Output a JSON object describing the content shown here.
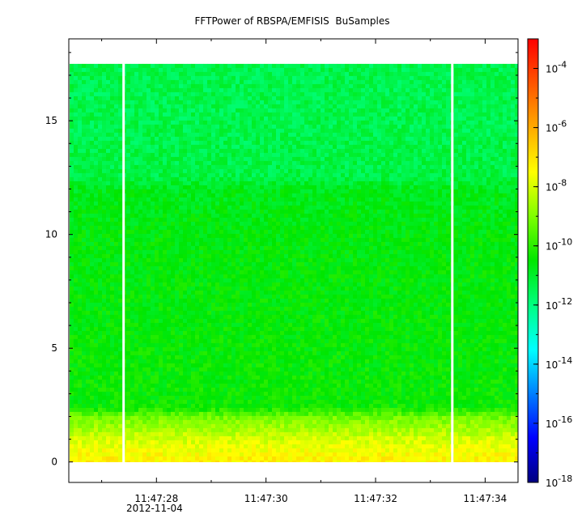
{
  "chart_data": {
    "type": "heatmap",
    "title": "FFTPower of RBSPA/EMFISIS  BuSamples",
    "xlabel": "",
    "ylabel": "",
    "x": {
      "unit": "time",
      "range": [
        "11:47:26.4",
        "11:47:34.6"
      ],
      "ticks": [
        {
          "value": "11:47:28",
          "label": "11:47:28"
        },
        {
          "value": "11:47:30",
          "label": "11:47:30"
        },
        {
          "value": "11:47:32",
          "label": "11:47:32"
        },
        {
          "value": "11:47:34",
          "label": "11:47:34"
        }
      ],
      "date_label": "2012-11-04",
      "data_gaps": [
        "11:47:27.4",
        "11:47:33.4"
      ]
    },
    "y": {
      "range": [
        -0.9,
        18.6
      ],
      "data_range": [
        0,
        17.5
      ],
      "ticks": [
        0,
        5,
        10,
        15
      ]
    },
    "z": {
      "scale": "log",
      "range": [
        1e-18,
        0.001
      ],
      "tick_exponents": [
        -18,
        -16,
        -14,
        -12,
        -10,
        -8,
        -6,
        -4
      ],
      "colormap": [
        "#00007f",
        "#0000ff",
        "#007fff",
        "#00ffff",
        "#00ff80",
        "#00e600",
        "#7fff00",
        "#ffff00",
        "#ffaa00",
        "#ff5500",
        "#ff0000"
      ]
    },
    "spectrum_profile": [
      {
        "y": 0.1,
        "log_power": -7.3
      },
      {
        "y": 0.5,
        "log_power": -7.6
      },
      {
        "y": 1.0,
        "log_power": -8.0
      },
      {
        "y": 1.5,
        "log_power": -8.6
      },
      {
        "y": 2.0,
        "log_power": -9.2
      },
      {
        "y": 2.4,
        "log_power": -10.4
      },
      {
        "y": 5.0,
        "log_power": -10.5
      },
      {
        "y": 10.0,
        "log_power": -10.6
      },
      {
        "y": 12.0,
        "log_power": -10.8
      },
      {
        "y": 12.5,
        "log_power": -11.3
      },
      {
        "y": 15.0,
        "log_power": -11.4
      },
      {
        "y": 17.5,
        "log_power": -11.4
      }
    ]
  }
}
